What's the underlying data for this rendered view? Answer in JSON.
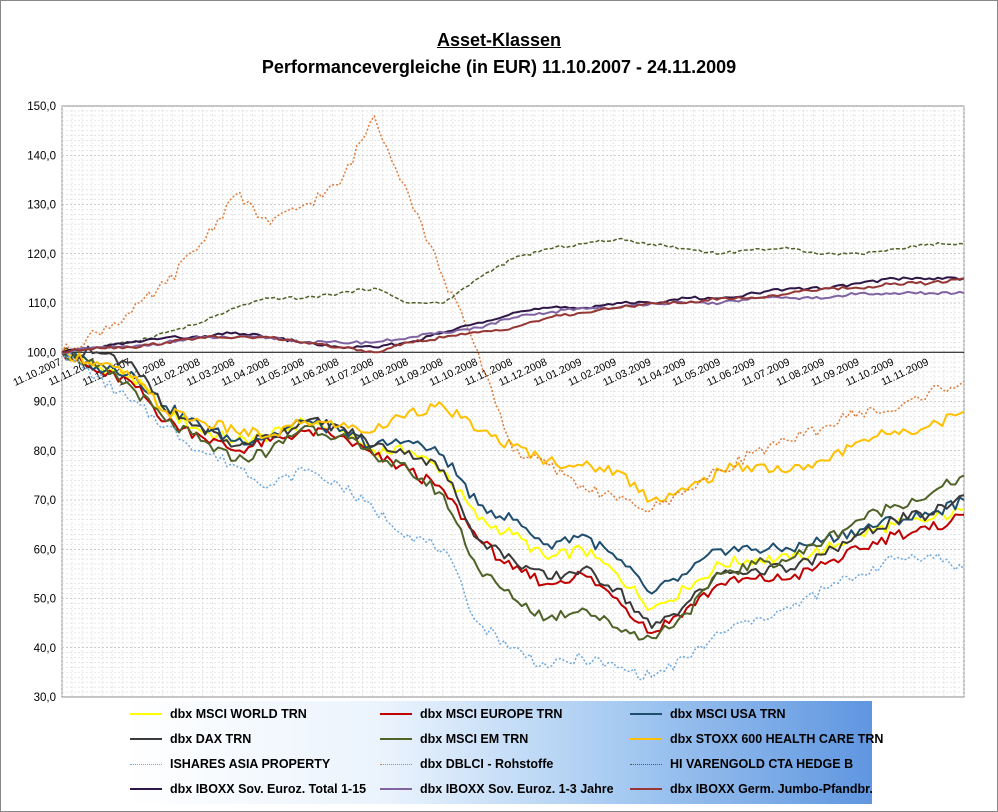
{
  "title": "Asset-Klassen",
  "subtitle": "Performancevergleiche (in EUR) 11.10.2007  -  24.11.2009",
  "chart_data": {
    "type": "line",
    "title": "Asset-Klassen",
    "subtitle": "Performancevergleiche (in EUR) 11.10.2007  -  24.11.2009",
    "xlabel": "",
    "ylabel": "",
    "ylim": [
      30,
      150
    ],
    "yticks": [
      "30,0",
      "40,0",
      "50,0",
      "60,0",
      "70,0",
      "80,0",
      "90,0",
      "100,0",
      "110,0",
      "120,0",
      "130,0",
      "140,0",
      "150,0"
    ],
    "ytick_values": [
      30,
      40,
      50,
      60,
      70,
      80,
      90,
      100,
      110,
      120,
      130,
      140,
      150
    ],
    "baseline": 100,
    "grid": true,
    "legend_position": "bottom",
    "x": [
      "11.10.2007",
      "11.11.2007",
      "11.12.2007",
      "11.01.2008",
      "11.02.2008",
      "11.03.2008",
      "11.04.2008",
      "11.05.2008",
      "11.06.2008",
      "11.07.2008",
      "11.08.2008",
      "11.09.2008",
      "11.10.2008",
      "11.11.2008",
      "11.12.2008",
      "11.01.2009",
      "11.02.2009",
      "11.03.2009",
      "11.04.2009",
      "11.05.2009",
      "11.06.2009",
      "11.07.2009",
      "11.08.2009",
      "11.09.2009",
      "11.10.2009",
      "11.11.2009",
      "24.11.2009"
    ],
    "x_labels": [
      "11.10.2007",
      "11.11.2007",
      "11.12.2007",
      "11.01.2008",
      "11.02.2008",
      "11.03.2008",
      "11.04.2008",
      "11.05.2008",
      "11.06.2008",
      "11.07.2008",
      "11.08.2008",
      "11.09.2008",
      "11.10.2008",
      "11.11.2008",
      "11.12.2008",
      "11.01.2009",
      "11.02.2009",
      "11.03.2009",
      "11.04.2009",
      "11.05.2009",
      "11.06.2009",
      "11.07.2009",
      "11.08.2009",
      "11.09.2009",
      "11.10.2009",
      "11.11.2009"
    ],
    "series": [
      {
        "name": "dbx MSCI WORLD TRN",
        "color": "#ffff00",
        "width": 2,
        "dash": "",
        "values": [
          100,
          97,
          95,
          88,
          84,
          82,
          83,
          86,
          84,
          80,
          80,
          76,
          66,
          63,
          58,
          60,
          55,
          48,
          52,
          57,
          58,
          58,
          60,
          63,
          65,
          66,
          68
        ]
      },
      {
        "name": "dbx MSCI EUROPE TRN",
        "color": "#c00000",
        "width": 2,
        "dash": "",
        "values": [
          100,
          96,
          94,
          86,
          83,
          80,
          82,
          84,
          83,
          79,
          76,
          72,
          62,
          56,
          53,
          55,
          50,
          43,
          48,
          53,
          54,
          54,
          57,
          60,
          63,
          64,
          67
        ]
      },
      {
        "name": "dbx MSCI USA TRN",
        "color": "#1f4e6e",
        "width": 2,
        "dash": "",
        "values": [
          100,
          97,
          96,
          89,
          85,
          82,
          83,
          86,
          84,
          81,
          82,
          79,
          69,
          66,
          61,
          63,
          58,
          51,
          55,
          60,
          60,
          60,
          62,
          64,
          66,
          67,
          70
        ]
      },
      {
        "name": "dbx DAX TRN",
        "color": "#3a3a3a",
        "width": 2,
        "dash": "",
        "values": [
          100,
          100,
          98,
          88,
          85,
          81,
          83,
          86,
          85,
          81,
          80,
          76,
          62,
          58,
          54,
          56,
          52,
          44,
          49,
          55,
          56,
          56,
          59,
          63,
          66,
          67,
          71
        ]
      },
      {
        "name": "dbx MSCI EM TRN",
        "color": "#4f6228",
        "width": 2,
        "dash": "",
        "values": [
          100,
          97,
          93,
          86,
          82,
          78,
          80,
          85,
          83,
          79,
          76,
          71,
          56,
          50,
          46,
          48,
          44,
          42,
          47,
          55,
          57,
          58,
          62,
          66,
          69,
          71,
          75
        ]
      },
      {
        "name": "dbx STOXX 600  HEALTH CARE TRN",
        "color": "#ffc000",
        "width": 2,
        "dash": "",
        "values": [
          100,
          98,
          95,
          88,
          86,
          84,
          83,
          86,
          85,
          84,
          88,
          89,
          84,
          81,
          78,
          77,
          76,
          70,
          72,
          76,
          77,
          76,
          78,
          82,
          84,
          85,
          88
        ]
      },
      {
        "name": "ISHARES ASIA PROPERTY",
        "color": "#6fa8dc",
        "width": 1.5,
        "dash": "2,2",
        "values": [
          100,
          95,
          90,
          85,
          80,
          77,
          73,
          76,
          73,
          68,
          63,
          60,
          45,
          40,
          36,
          38,
          36,
          34,
          38,
          43,
          46,
          48,
          52,
          55,
          58,
          59,
          56
        ]
      },
      {
        "name": "dbx DBLCI - Rohstoffe",
        "color": "#e07b39",
        "width": 1.5,
        "dash": "2,2",
        "values": [
          100,
          104,
          108,
          114,
          122,
          132,
          126,
          130,
          134,
          148,
          132,
          115,
          100,
          80,
          77,
          73,
          70,
          68,
          72,
          76,
          80,
          82,
          85,
          88,
          88,
          92,
          94
        ]
      },
      {
        "name": "HI VARENGOLD CTA HEDGE B",
        "color": "#4f6228",
        "width": 1.5,
        "dash": "4,2",
        "values": [
          100,
          101,
          102,
          104,
          106,
          109,
          111,
          111,
          112,
          113,
          110,
          110,
          115,
          119,
          121,
          122,
          123,
          122,
          121,
          120,
          121,
          121,
          120,
          120,
          121,
          122,
          122
        ]
      },
      {
        "name": "dbx IBOXX Sov. Euroz. Total 1-15",
        "color": "#2e1746",
        "width": 2,
        "dash": "",
        "values": [
          100,
          101,
          102,
          103,
          103,
          104,
          103,
          102,
          101,
          101,
          102,
          104,
          106,
          108,
          109,
          109,
          110,
          110,
          111,
          111,
          112,
          113,
          113,
          114,
          115,
          115,
          115
        ]
      },
      {
        "name": "dbx IBOXX Sov. Euroz. 1-3 Jahre",
        "color": "#8064a2",
        "width": 2,
        "dash": "",
        "values": [
          100,
          101,
          101,
          102,
          103,
          103,
          103,
          102,
          102,
          102,
          103,
          104,
          105,
          107,
          108,
          109,
          109,
          110,
          110,
          110,
          111,
          111,
          111,
          112,
          112,
          112,
          112
        ]
      },
      {
        "name": "dbx IBOXX Germ. Jumbo-Pfandbr.",
        "color": "#953735",
        "width": 2,
        "dash": "",
        "values": [
          100,
          101,
          101,
          102,
          103,
          103,
          103,
          102,
          101,
          100,
          102,
          103,
          104,
          105,
          107,
          108,
          109,
          110,
          110,
          111,
          111,
          112,
          113,
          113,
          114,
          114,
          115
        ]
      }
    ]
  }
}
